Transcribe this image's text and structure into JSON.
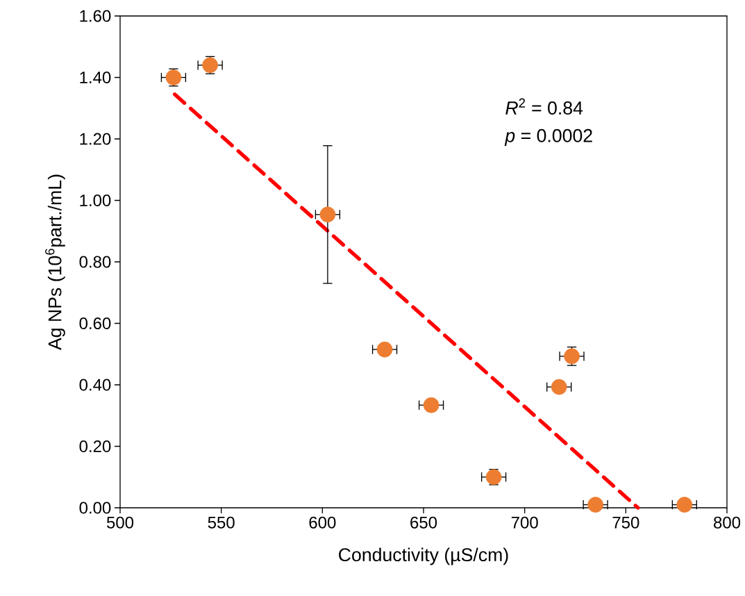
{
  "chart_data": {
    "type": "scatter",
    "xlabel": "Conductivity (µS/cm)",
    "ylabel": "Ag NPs (10$^{6}$part./mL)",
    "xlim": [
      500,
      800
    ],
    "xticks": [
      500,
      550,
      600,
      650,
      700,
      750,
      800
    ],
    "ylim": [
      0,
      1.6
    ],
    "yticks": [
      {
        "value": 0,
        "label": "0.00"
      },
      {
        "value": 0.2,
        "label": "0.20"
      },
      {
        "value": 0.4,
        "label": "0.40"
      },
      {
        "value": 0.6,
        "label": "0.60"
      },
      {
        "value": 0.8,
        "label": "0.80"
      },
      {
        "value": 1.0,
        "label": "1.00"
      },
      {
        "value": 1.2,
        "label": "1.20"
      },
      {
        "value": 1.4,
        "label": "1.40"
      },
      {
        "value": 1.6,
        "label": "1.60"
      }
    ],
    "annotations": [
      "*R*$^{2}$ = 0.84",
      "*p* = 0.0002"
    ],
    "grid": false,
    "series": [
      {
        "color": "#ed7d31",
        "marker": "circle",
        "x": [
          526.4,
          544.5,
          602.6,
          630.8,
          653.8,
          684.7,
          717,
          723.3,
          735,
          779
        ],
        "values": [
          1.4,
          1.44,
          0.954,
          0.515,
          0.334,
          0.1,
          0.393,
          0.493,
          0.01,
          0.01
        ],
        "errors": [
          0.028,
          0.028,
          0.224,
          null,
          null,
          0.025,
          null,
          0.03,
          null,
          null
        ],
        "xerrors": [
          6,
          6,
          6,
          6,
          6,
          6,
          6,
          6,
          6,
          6
        ]
      },
      {
        "type": "line",
        "color": "#ff0000",
        "marker": "none",
        "line_style": "dashed",
        "x": [
          527,
          756
        ],
        "values": [
          1.345,
          0
        ]
      }
    ]
  }
}
